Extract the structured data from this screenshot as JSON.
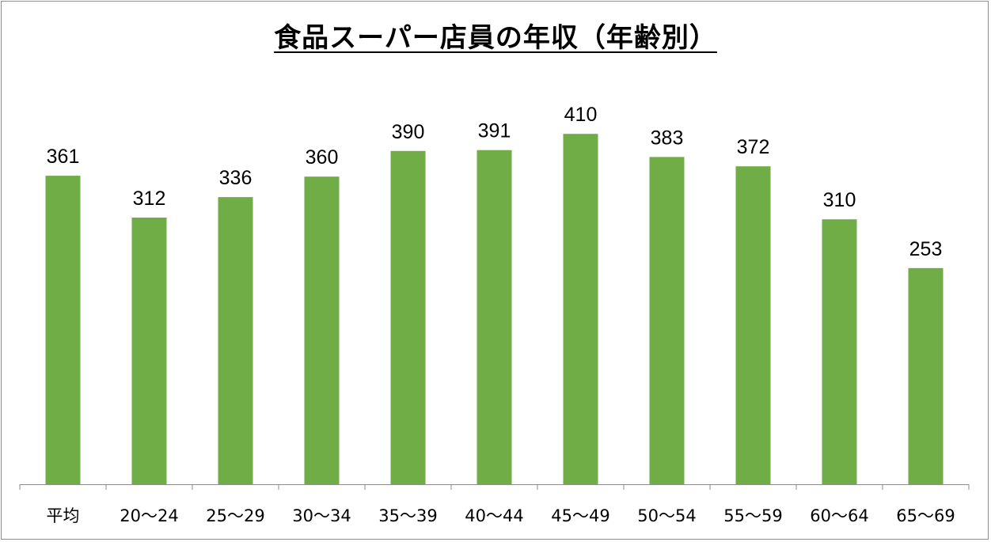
{
  "chart_data": {
    "type": "bar",
    "title": "食品スーパー店員の年収（年齢別）",
    "xlabel": "",
    "ylabel": "",
    "categories": [
      "平均",
      "20〜24",
      "25〜29",
      "30〜34",
      "35〜39",
      "40〜44",
      "45〜49",
      "50〜54",
      "55〜59",
      "60〜64",
      "65〜69"
    ],
    "values": [
      361,
      312,
      336,
      360,
      390,
      391,
      410,
      383,
      372,
      310,
      253
    ],
    "ylim": [
      0,
      450
    ],
    "grid": false,
    "legend": "none",
    "bar_color": "#70AD47",
    "axis_color": "#8C8C8C"
  }
}
